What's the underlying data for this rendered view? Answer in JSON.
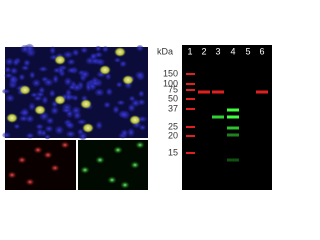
{
  "gel": {
    "unit": "kDa",
    "lanes": [
      "1",
      "2",
      "3",
      "4",
      "5",
      "6"
    ],
    "markers": [
      "150",
      "100",
      "75",
      "50",
      "37",
      "25",
      "20",
      "15"
    ]
  }
}
